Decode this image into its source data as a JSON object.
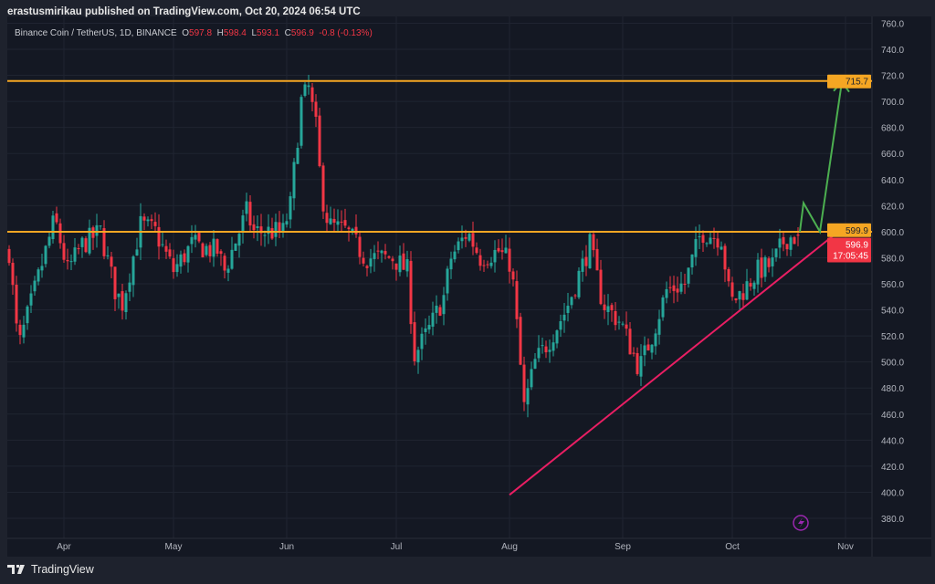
{
  "header": {
    "published": "erastusmirikau published on TradingView.com, Oct 20, 2024 06:54 UTC"
  },
  "legend": {
    "symbol": "Binance Coin / TetherUS, 1D, BINANCE",
    "o_label": "O",
    "o": "597.8",
    "h_label": "H",
    "h": "598.4",
    "l_label": "L",
    "l": "593.1",
    "c_label": "C",
    "c": "596.9",
    "change": "-0.8 (-0.13%)"
  },
  "price_tags": {
    "resistance": "715.7",
    "support": "599.9",
    "last": "596.9",
    "countdown": "17:05:45"
  },
  "footer": {
    "brand": "TradingView"
  },
  "colors": {
    "up": "#26a69a",
    "down": "#f23645",
    "level": "#f5a623",
    "trend": "#e91e63",
    "arrow": "#4caf50"
  },
  "chart_data": {
    "type": "candlestick",
    "title": "Binance Coin / TetherUS, 1D, BINANCE",
    "x_unit": "days since Mar 17 2024",
    "ylim": [
      365,
      765
    ],
    "yticks": [
      "760.0",
      "740.0",
      "720.0",
      "700.0",
      "680.0",
      "660.0",
      "640.0",
      "620.0",
      "600.0",
      "580.0",
      "560.0",
      "540.0",
      "520.0",
      "500.0",
      "480.0",
      "460.0",
      "440.0",
      "420.0",
      "400.0",
      "380.0"
    ],
    "months": [
      {
        "label": "Apr",
        "day": 15
      },
      {
        "label": "May",
        "day": 45
      },
      {
        "label": "Jun",
        "day": 76
      },
      {
        "label": "Jul",
        "day": 106
      },
      {
        "label": "Aug",
        "day": 137
      },
      {
        "label": "Sep",
        "day": 168
      },
      {
        "label": "Oct",
        "day": 198
      },
      {
        "label": "Nov",
        "day": 229
      }
    ],
    "close_keypoints": [
      [
        0,
        585
      ],
      [
        2.5,
        510
      ],
      [
        7.5,
        560
      ],
      [
        12.5,
        610
      ],
      [
        16,
        570
      ],
      [
        20,
        590
      ],
      [
        25,
        600
      ],
      [
        29,
        555
      ],
      [
        31,
        545
      ],
      [
        36,
        605
      ],
      [
        40,
        600
      ],
      [
        45,
        570
      ],
      [
        50,
        590
      ],
      [
        57,
        585
      ],
      [
        59,
        570
      ],
      [
        65,
        615
      ],
      [
        67,
        600
      ],
      [
        75,
        600
      ],
      [
        77,
        620
      ],
      [
        80,
        700
      ],
      [
        82,
        710
      ],
      [
        84,
        680
      ],
      [
        85.5,
        630
      ],
      [
        87.5,
        605
      ],
      [
        92.5,
        600
      ],
      [
        97.5,
        580
      ],
      [
        105,
        580
      ],
      [
        109,
        570
      ],
      [
        111,
        505
      ],
      [
        115,
        525
      ],
      [
        119,
        550
      ],
      [
        121,
        580
      ],
      [
        125.5,
        600
      ],
      [
        129,
        580
      ],
      [
        134,
        585
      ],
      [
        137.5,
        575
      ],
      [
        141,
        465
      ],
      [
        144,
        500
      ],
      [
        147.5,
        515
      ],
      [
        152.5,
        540
      ],
      [
        159,
        590
      ],
      [
        162.5,
        545
      ],
      [
        167.5,
        530
      ],
      [
        172.5,
        495
      ],
      [
        176,
        520
      ],
      [
        180,
        555
      ],
      [
        185,
        560
      ],
      [
        189.5,
        600
      ],
      [
        195,
        595
      ],
      [
        197.5,
        545
      ],
      [
        201,
        555
      ],
      [
        205,
        570
      ],
      [
        209,
        575
      ],
      [
        212.5,
        595
      ],
      [
        216.5,
        597
      ]
    ],
    "levels": [
      715.7,
      599.9
    ],
    "trendline": [
      [
        137,
        398
      ],
      [
        227,
        600
      ]
    ],
    "projection": [
      [
        216.5,
        600
      ],
      [
        217.5,
        622
      ],
      [
        222,
        600
      ],
      [
        228,
        715
      ]
    ],
    "last_price": 596.9
  }
}
